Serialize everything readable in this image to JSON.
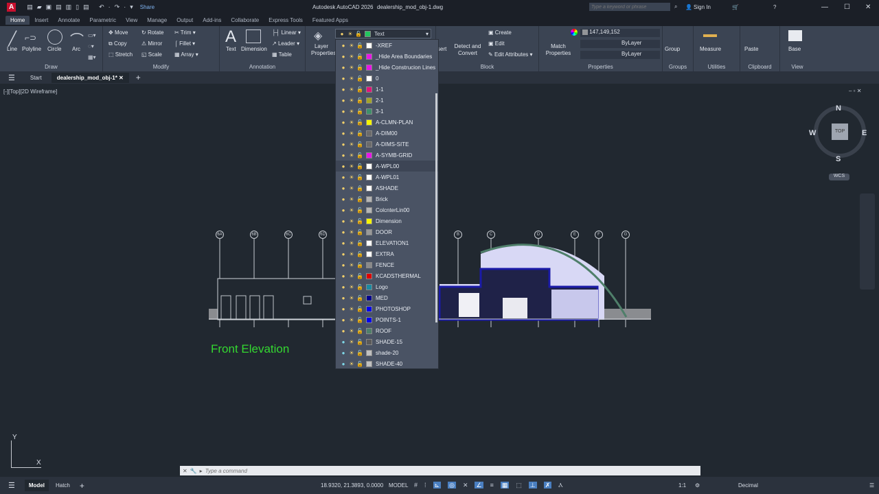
{
  "app": {
    "title": "Autodesk AutoCAD 2026",
    "file": "dealership_mod_obj-1.dwg",
    "logo": "A",
    "share": "Share",
    "search_placeholder": "Type a keyword or phrase",
    "sign_in": "Sign In"
  },
  "ribbon_tabs": [
    "Home",
    "Insert",
    "Annotate",
    "Parametric",
    "View",
    "Manage",
    "Output",
    "Add-ins",
    "Collaborate",
    "Express Tools",
    "Featured Apps"
  ],
  "draw": {
    "title": "Draw",
    "line": "Line",
    "polyline": "Polyline",
    "circle": "Circle",
    "arc": "Arc"
  },
  "modify": {
    "title": "Modify",
    "move": "Move",
    "rotate": "Rotate",
    "trim": "Trim",
    "copy": "Copy",
    "mirror": "Mirror",
    "fillet": "Fillet",
    "stretch": "Stretch",
    "scale": "Scale",
    "array": "Array"
  },
  "annotation": {
    "title": "Annotation",
    "text": "Text",
    "dimension": "Dimension",
    "linear": "Linear",
    "leader": "Leader",
    "table": "Table"
  },
  "layers": {
    "layer_properties": "Layer Properties",
    "current": "Text",
    "current_color": "#22c55e",
    "items": [
      {
        "name": "-XREF",
        "color": "#ffffff",
        "on": true,
        "locked": false
      },
      {
        "name": "_Hide Area Boundaries",
        "color": "#e815e8",
        "on": true,
        "locked": false
      },
      {
        "name": "_Hide Construcion Lines",
        "color": "#e815e8",
        "on": true,
        "locked": false
      },
      {
        "name": "0",
        "color": "#ffffff",
        "on": true,
        "locked": false
      },
      {
        "name": "1-1",
        "color": "#e0157a",
        "on": true,
        "locked": false
      },
      {
        "name": "2-1",
        "color": "#a3a32a",
        "on": true,
        "locked": false
      },
      {
        "name": "3-1",
        "color": "#3f8f6a",
        "on": true,
        "locked": false
      },
      {
        "name": "A-CLMN-PLAN",
        "color": "#f5f500",
        "on": true,
        "locked": false
      },
      {
        "name": "A-DIM00",
        "color": "#6b6b6b",
        "on": true,
        "locked": false
      },
      {
        "name": "A-DIMS-SITE",
        "color": "#6b6b6b",
        "on": true,
        "locked": false
      },
      {
        "name": "A-SYMB-GRID",
        "color": "#e815e8",
        "on": true,
        "locked": false
      },
      {
        "name": "A-WPL00",
        "color": "#ffffff",
        "on": true,
        "locked": false
      },
      {
        "name": "A-WPL01",
        "color": "#ffffff",
        "on": true,
        "locked": false
      },
      {
        "name": "ASHADE",
        "color": "#ffffff",
        "on": true,
        "locked": true
      },
      {
        "name": "Brick",
        "color": "#b5b5b5",
        "on": true,
        "locked": false
      },
      {
        "name": "ColcnterLin00",
        "color": "#b5b5b5",
        "on": true,
        "locked": false
      },
      {
        "name": "Dimension",
        "color": "#f5f500",
        "on": true,
        "locked": false
      },
      {
        "name": "DOOR",
        "color": "#999999",
        "on": true,
        "locked": false
      },
      {
        "name": "ELEVATION1",
        "color": "#ffffff",
        "on": true,
        "locked": false
      },
      {
        "name": "EXTRA",
        "color": "#ffffff",
        "on": true,
        "locked": false
      },
      {
        "name": "FENCE",
        "color": "#8a8a8a",
        "on": true,
        "locked": false
      },
      {
        "name": "KCADSTHERMAL",
        "color": "#e00000",
        "on": true,
        "locked": false
      },
      {
        "name": "Logo",
        "color": "#1a8aa3",
        "on": true,
        "locked": false
      },
      {
        "name": "MED",
        "color": "#00008f",
        "on": true,
        "locked": false
      },
      {
        "name": "PHOTOSHOP",
        "color": "#0000f0",
        "on": true,
        "locked": false
      },
      {
        "name": "POINTS-1",
        "color": "#0000f0",
        "on": true,
        "locked": false
      },
      {
        "name": "ROOF",
        "color": "#4f7f6a",
        "on": true,
        "locked": false
      },
      {
        "name": "SHADE-15",
        "color": "#5a5a5a",
        "on": false,
        "locked": false
      },
      {
        "name": "shade-20",
        "color": "#c0c0c0",
        "on": false,
        "locked": false
      },
      {
        "name": "SHADE-40",
        "color": "#c0c0c0",
        "on": false,
        "locked": false
      }
    ]
  },
  "block": {
    "title": "Block",
    "insert": "Insert",
    "detect": "Detect and Convert",
    "create": "Create",
    "edit": "Edit",
    "edit_attr": "Edit Attributes"
  },
  "properties": {
    "title": "Properties",
    "match": "Match Properties",
    "color": "147,149,152",
    "linetype": "ByLayer",
    "lineweight": "ByLayer"
  },
  "groups": {
    "title": "Groups",
    "group": "Group"
  },
  "utilities": {
    "title": "Utilities",
    "measure": "Measure"
  },
  "clipboard": {
    "title": "Clipboard",
    "paste": "Paste"
  },
  "view": {
    "title": "View",
    "base": "Base"
  },
  "doc_tabs": {
    "start": "Start",
    "active": "dealership_mod_obj-1*"
  },
  "viewport": {
    "label": "[-][Top][2D Wireframe]",
    "viewcube": {
      "n": "N",
      "s": "S",
      "e": "E",
      "w": "W",
      "top": "TOP",
      "wcs": "WCS"
    }
  },
  "drawing": {
    "title": "Front Elevation",
    "grid_left": [
      "6A",
      "6B",
      "6C",
      "6D"
    ],
    "grid_right": [
      "B",
      "C",
      "D",
      "E",
      "F",
      "G"
    ]
  },
  "ucs": {
    "x": "X",
    "y": "Y"
  },
  "command": {
    "placeholder": "Type a command"
  },
  "status": {
    "model_tab": "Model",
    "layout_tab": "Hatch",
    "coords": "18.9320, 21.3893, 0.0000",
    "space": "MODEL",
    "scale": "1:1",
    "units": "Decimal"
  }
}
